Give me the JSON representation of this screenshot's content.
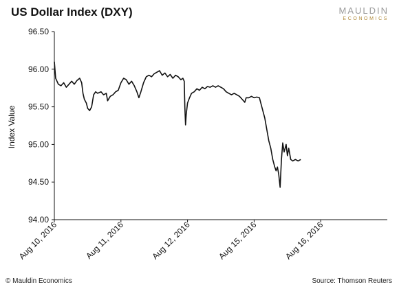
{
  "logo": {
    "line1": "MAULDIN",
    "line2": "ECONOMICS"
  },
  "footer": {
    "copyright": "© Mauldin Economics",
    "source": "Source: Thomson Reuters"
  },
  "chart_data": {
    "type": "line",
    "title": "US Dollar Index (DXY)",
    "xlabel": "",
    "ylabel": "Index Value",
    "ylim": [
      94.0,
      96.5
    ],
    "yticks": [
      "94.00",
      "94.50",
      "95.00",
      "95.50",
      "96.00",
      "96.50"
    ],
    "xlim": [
      0,
      5
    ],
    "categories": [
      "Aug 10, 2016",
      "Aug 11, 2016",
      "Aug 12, 2016",
      "Aug 15, 2016",
      "Aug 16, 2016"
    ],
    "line_color": "#111111",
    "grid": false,
    "series": [
      {
        "values": [
          [
            0.0,
            96.1
          ],
          [
            0.02,
            95.88
          ],
          [
            0.06,
            95.8
          ],
          [
            0.1,
            95.78
          ],
          [
            0.14,
            95.82
          ],
          [
            0.18,
            95.76
          ],
          [
            0.22,
            95.8
          ],
          [
            0.26,
            95.84
          ],
          [
            0.3,
            95.8
          ],
          [
            0.34,
            95.85
          ],
          [
            0.38,
            95.88
          ],
          [
            0.41,
            95.82
          ],
          [
            0.43,
            95.68
          ],
          [
            0.45,
            95.6
          ],
          [
            0.48,
            95.55
          ],
          [
            0.5,
            95.48
          ],
          [
            0.53,
            95.45
          ],
          [
            0.56,
            95.5
          ],
          [
            0.59,
            95.66
          ],
          [
            0.62,
            95.7
          ],
          [
            0.65,
            95.68
          ],
          [
            0.7,
            95.7
          ],
          [
            0.74,
            95.66
          ],
          [
            0.78,
            95.68
          ],
          [
            0.8,
            95.58
          ],
          [
            0.84,
            95.64
          ],
          [
            0.88,
            95.66
          ],
          [
            0.92,
            95.7
          ],
          [
            0.96,
            95.72
          ],
          [
            1.0,
            95.82
          ],
          [
            1.04,
            95.88
          ],
          [
            1.08,
            95.86
          ],
          [
            1.12,
            95.8
          ],
          [
            1.16,
            95.84
          ],
          [
            1.2,
            95.78
          ],
          [
            1.24,
            95.7
          ],
          [
            1.27,
            95.62
          ],
          [
            1.3,
            95.7
          ],
          [
            1.34,
            95.82
          ],
          [
            1.38,
            95.9
          ],
          [
            1.42,
            95.92
          ],
          [
            1.46,
            95.9
          ],
          [
            1.5,
            95.94
          ],
          [
            1.54,
            95.96
          ],
          [
            1.58,
            95.98
          ],
          [
            1.62,
            95.92
          ],
          [
            1.66,
            95.95
          ],
          [
            1.7,
            95.9
          ],
          [
            1.74,
            95.93
          ],
          [
            1.78,
            95.88
          ],
          [
            1.82,
            95.92
          ],
          [
            1.86,
            95.9
          ],
          [
            1.9,
            95.86
          ],
          [
            1.93,
            95.88
          ],
          [
            1.95,
            95.84
          ],
          [
            1.96,
            95.5
          ],
          [
            1.97,
            95.26
          ],
          [
            1.98,
            95.4
          ],
          [
            2.0,
            95.55
          ],
          [
            2.03,
            95.62
          ],
          [
            2.06,
            95.68
          ],
          [
            2.1,
            95.7
          ],
          [
            2.14,
            95.74
          ],
          [
            2.18,
            95.72
          ],
          [
            2.22,
            95.76
          ],
          [
            2.26,
            95.74
          ],
          [
            2.3,
            95.77
          ],
          [
            2.34,
            95.76
          ],
          [
            2.38,
            95.78
          ],
          [
            2.42,
            95.76
          ],
          [
            2.46,
            95.78
          ],
          [
            2.5,
            95.76
          ],
          [
            2.54,
            95.74
          ],
          [
            2.58,
            95.7
          ],
          [
            2.62,
            95.68
          ],
          [
            2.66,
            95.66
          ],
          [
            2.7,
            95.68
          ],
          [
            2.74,
            95.66
          ],
          [
            2.78,
            95.64
          ],
          [
            2.82,
            95.6
          ],
          [
            2.86,
            95.56
          ],
          [
            2.88,
            95.62
          ],
          [
            2.92,
            95.62
          ],
          [
            2.96,
            95.64
          ],
          [
            3.0,
            95.62
          ],
          [
            3.04,
            95.63
          ],
          [
            3.08,
            95.62
          ],
          [
            3.1,
            95.55
          ],
          [
            3.13,
            95.45
          ],
          [
            3.16,
            95.35
          ],
          [
            3.19,
            95.2
          ],
          [
            3.22,
            95.05
          ],
          [
            3.25,
            94.95
          ],
          [
            3.28,
            94.8
          ],
          [
            3.31,
            94.7
          ],
          [
            3.33,
            94.65
          ],
          [
            3.35,
            94.7
          ],
          [
            3.37,
            94.6
          ],
          [
            3.39,
            94.43
          ],
          [
            3.41,
            94.8
          ],
          [
            3.43,
            95.02
          ],
          [
            3.45,
            94.9
          ],
          [
            3.48,
            95.0
          ],
          [
            3.5,
            94.85
          ],
          [
            3.52,
            94.95
          ],
          [
            3.55,
            94.8
          ],
          [
            3.58,
            94.78
          ],
          [
            3.62,
            94.8
          ],
          [
            3.66,
            94.78
          ],
          [
            3.7,
            94.8
          ]
        ]
      }
    ]
  }
}
